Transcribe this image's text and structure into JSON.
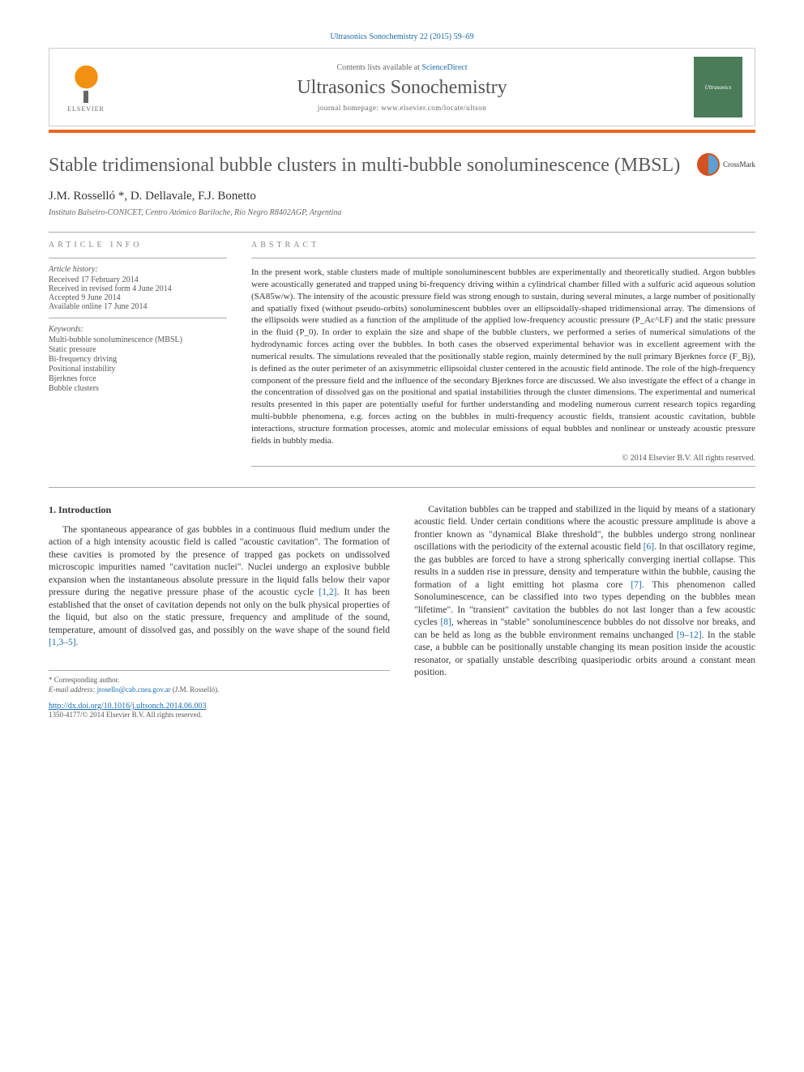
{
  "header": {
    "citation": "Ultrasonics Sonochemistry 22 (2015) 59–69",
    "contents_prefix": "Contents lists available at ",
    "contents_link": "ScienceDirect",
    "journal": "Ultrasonics Sonochemistry",
    "homepage_prefix": "journal homepage: ",
    "homepage_url": "www.elsevier.com/locate/ultson",
    "elsevier": "ELSEVIER",
    "cover_text": "Ultrasonics"
  },
  "crossmark": "CrossMark",
  "title": "Stable tridimensional bubble clusters in multi-bubble sonoluminescence (MBSL)",
  "authors": "J.M. Rosselló *, D. Dellavale, F.J. Bonetto",
  "affiliation": "Instituto Balseiro-CONICET, Centro Atómico Bariloche, Río Negro R8402AGP, Argentina",
  "info": {
    "label": "ARTICLE INFO",
    "history_label": "Article history:",
    "history": [
      "Received 17 February 2014",
      "Received in revised form 4 June 2014",
      "Accepted 9 June 2014",
      "Available online 17 June 2014"
    ],
    "keywords_label": "Keywords:",
    "keywords": [
      "Multi-bubble sonoluminescence (MBSL)",
      "Static pressure",
      "Bi-frequency driving",
      "Positional instability",
      "Bjerknes force",
      "Bubble clusters"
    ]
  },
  "abstract": {
    "label": "ABSTRACT",
    "text": "In the present work, stable clusters made of multiple sonoluminescent bubbles are experimentally and theoretically studied. Argon bubbles were acoustically generated and trapped using bi-frequency driving within a cylindrical chamber filled with a sulfuric acid aqueous solution (SA85w/w). The intensity of the acoustic pressure field was strong enough to sustain, during several minutes, a large number of positionally and spatially fixed (without pseudo-orbits) sonoluminescent bubbles over an ellipsoidally-shaped tridimensional array. The dimensions of the ellipsoids were studied as a function of the amplitude of the applied low-frequency acoustic pressure (P_Ac^LF) and the static pressure in the fluid (P_0). In order to explain the size and shape of the bubble clusters, we performed a series of numerical simulations of the hydrodynamic forces acting over the bubbles. In both cases the observed experimental behavior was in excellent agreement with the numerical results. The simulations revealed that the positionally stable region, mainly determined by the null primary Bjerknes force (F_Bj), is defined as the outer perimeter of an axisymmetric ellipsoidal cluster centered in the acoustic field antinode. The role of the high-frequency component of the pressure field and the influence of the secondary Bjerknes force are discussed. We also investigate the effect of a change in the concentration of dissolved gas on the positional and spatial instabilities through the cluster dimensions. The experimental and numerical results presented in this paper are potentially useful for further understanding and modeling numerous current research topics regarding multi-bubble phenomena, e.g. forces acting on the bubbles in multi-frequency acoustic fields, transient acoustic cavitation, bubble interactions, structure formation processes, atomic and molecular emissions of equal bubbles and nonlinear or unsteady acoustic pressure fields in bubbly media.",
    "copyright": "© 2014 Elsevier B.V. All rights reserved."
  },
  "intro": {
    "heading": "1. Introduction",
    "para1_a": "The spontaneous appearance of gas bubbles in a continuous fluid medium under the action of a high intensity acoustic field is called \"acoustic cavitation\". The formation of these cavities is promoted by the presence of trapped gas pockets on undissolved microscopic impurities named \"cavitation nuclei\". Nuclei undergo an explosive bubble expansion when the instantaneous absolute pressure in the liquid falls below their vapor pressure during the negative pressure phase of the acoustic cycle ",
    "ref1": "[1,2]",
    "para1_b": ". It has been established that the onset of cavitation depends not only on the bulk physical properties of the liquid, but also on the static pressure, frequency and amplitude of the sound, temperature, amount of dissolved gas, and possibly on the wave shape of the sound field ",
    "ref2": "[1,3–5]",
    "para1_c": ".",
    "para2_a": "Cavitation bubbles can be trapped and stabilized in the liquid by means of a stationary acoustic field. Under certain conditions where the acoustic pressure amplitude is above a frontier known as \"dynamical Blake threshold\", the bubbles undergo strong nonlinear oscillations with the periodicity of the external acoustic field ",
    "ref3": "[6]",
    "para2_b": ". In that oscillatory regime, the gas bubbles are forced to have a strong spherically converging inertial collapse. This results in a sudden rise in pressure, density and temperature within the bubble, causing the formation of a light emitting hot plasma core ",
    "ref4": "[7]",
    "para2_c": ". This phenomenon called Sonoluminescence, can be classified into two types depending on the bubbles mean \"lifetime\". In \"transient\" cavitation the bubbles do not last longer than a few acoustic cycles ",
    "ref5": "[8]",
    "para2_d": ", whereas in \"stable\" sonoluminescence bubbles do not dissolve nor breaks, and can be held as long as the bubble environment remains unchanged ",
    "ref6": "[9–12]",
    "para2_e": ". In the stable case, a bubble can be positionally unstable changing its mean position inside the acoustic resonator, or spatially unstable describing quasiperiodic orbits around a constant mean position."
  },
  "footer": {
    "corr": "* Corresponding author.",
    "email_label": "E-mail address: ",
    "email": "jrosello@cab.cnea.gov.ar",
    "email_suffix": " (J.M. Rosselló).",
    "doi": "http://dx.doi.org/10.1016/j.ultsonch.2014.06.003",
    "issn": "1350-4177/© 2014 Elsevier B.V. All rights reserved."
  },
  "colors": {
    "link": "#1a6baa",
    "accent": "#e8681f",
    "text": "#333333",
    "muted": "#666666"
  }
}
